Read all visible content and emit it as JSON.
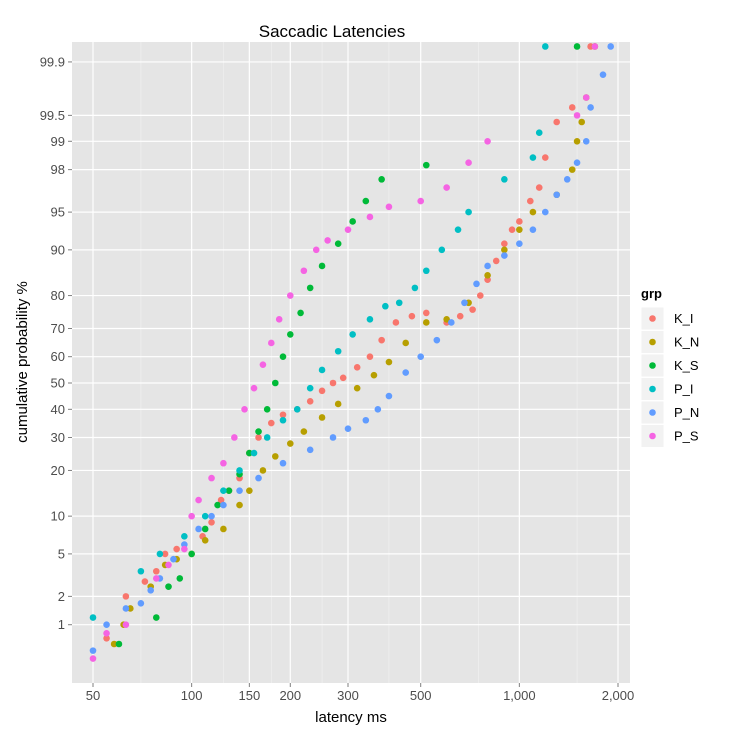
{
  "chart_data": {
    "type": "scatter",
    "title": "Saccadic Latencies",
    "xlabel": "latency ms",
    "ylabel": "cumulative probability %",
    "x_scale": "log10",
    "y_scale": "probit",
    "xlim": [
      45,
      2150
    ],
    "ylim": [
      0.2,
      99.95
    ],
    "x_ticks": [
      {
        "v": 50,
        "label": "50"
      },
      {
        "v": 100,
        "label": "100"
      },
      {
        "v": 150,
        "label": "150"
      },
      {
        "v": 200,
        "label": "200"
      },
      {
        "v": 300,
        "label": "300"
      },
      {
        "v": 500,
        "label": "500"
      },
      {
        "v": 1000,
        "label": "1,000"
      },
      {
        "v": 2000,
        "label": "2,000"
      }
    ],
    "y_ticks": [
      {
        "v": 1,
        "label": "1"
      },
      {
        "v": 2,
        "label": "2"
      },
      {
        "v": 5,
        "label": "5"
      },
      {
        "v": 10,
        "label": "10"
      },
      {
        "v": 20,
        "label": "20"
      },
      {
        "v": 30,
        "label": "30"
      },
      {
        "v": 40,
        "label": "40"
      },
      {
        "v": 50,
        "label": "50"
      },
      {
        "v": 60,
        "label": "60"
      },
      {
        "v": 70,
        "label": "70"
      },
      {
        "v": 80,
        "label": "80"
      },
      {
        "v": 90,
        "label": "90"
      },
      {
        "v": 95,
        "label": "95"
      },
      {
        "v": 98,
        "label": "98"
      },
      {
        "v": 99,
        "label": "99"
      },
      {
        "v": 99.5,
        "label": "99.5"
      },
      {
        "v": 99.9,
        "label": "99.9"
      }
    ],
    "grid": true,
    "legend": {
      "title": "grp",
      "placement": "right"
    },
    "series": [
      {
        "name": "K_I",
        "color": "#F8766D",
        "points": [
          [
            55,
            0.7
          ],
          [
            63,
            2
          ],
          [
            72,
            2.8
          ],
          [
            78,
            3.5
          ],
          [
            83,
            5
          ],
          [
            90,
            5.5
          ],
          [
            108,
            7
          ],
          [
            115,
            9
          ],
          [
            123,
            13
          ],
          [
            130,
            15
          ],
          [
            140,
            18
          ],
          [
            150,
            25
          ],
          [
            160,
            30
          ],
          [
            175,
            35
          ],
          [
            190,
            38
          ],
          [
            210,
            40
          ],
          [
            230,
            43
          ],
          [
            250,
            47
          ],
          [
            270,
            50
          ],
          [
            290,
            52
          ],
          [
            320,
            56
          ],
          [
            350,
            60
          ],
          [
            380,
            66
          ],
          [
            420,
            72
          ],
          [
            470,
            74
          ],
          [
            520,
            75
          ],
          [
            600,
            72
          ],
          [
            660,
            74
          ],
          [
            720,
            76
          ],
          [
            760,
            80
          ],
          [
            800,
            84
          ],
          [
            850,
            88
          ],
          [
            900,
            91
          ],
          [
            950,
            93
          ],
          [
            1000,
            94
          ],
          [
            1080,
            96
          ],
          [
            1150,
            97
          ],
          [
            1200,
            98.5
          ],
          [
            1300,
            99.4
          ],
          [
            1450,
            99.6
          ],
          [
            1650,
            99.94
          ]
        ]
      },
      {
        "name": "K_N",
        "color": "#B79F00",
        "points": [
          [
            58,
            0.6
          ],
          [
            62,
            1
          ],
          [
            65,
            1.5
          ],
          [
            75,
            2.5
          ],
          [
            83,
            4
          ],
          [
            90,
            4.5
          ],
          [
            100,
            5
          ],
          [
            110,
            6.5
          ],
          [
            125,
            8
          ],
          [
            140,
            12
          ],
          [
            150,
            15
          ],
          [
            165,
            20
          ],
          [
            180,
            24
          ],
          [
            200,
            28
          ],
          [
            220,
            32
          ],
          [
            250,
            37
          ],
          [
            280,
            42
          ],
          [
            320,
            48
          ],
          [
            360,
            53
          ],
          [
            400,
            58
          ],
          [
            450,
            65
          ],
          [
            520,
            72
          ],
          [
            600,
            73
          ],
          [
            700,
            78
          ],
          [
            800,
            85
          ],
          [
            900,
            90
          ],
          [
            1000,
            93
          ],
          [
            1100,
            95
          ],
          [
            1300,
            96.5
          ],
          [
            1450,
            98
          ],
          [
            1500,
            99
          ],
          [
            1550,
            99.4
          ],
          [
            1600,
            99.7
          ],
          [
            1700,
            99.94
          ]
        ]
      },
      {
        "name": "K_S",
        "color": "#00BA38",
        "points": [
          [
            60,
            0.6
          ],
          [
            78,
            1.2
          ],
          [
            85,
            2.5
          ],
          [
            92,
            3
          ],
          [
            100,
            5
          ],
          [
            110,
            8
          ],
          [
            120,
            12
          ],
          [
            130,
            15
          ],
          [
            140,
            19
          ],
          [
            150,
            25
          ],
          [
            160,
            32
          ],
          [
            170,
            40
          ],
          [
            180,
            50
          ],
          [
            190,
            60
          ],
          [
            200,
            68
          ],
          [
            215,
            75
          ],
          [
            230,
            82
          ],
          [
            250,
            87
          ],
          [
            280,
            91
          ],
          [
            310,
            94
          ],
          [
            340,
            96
          ],
          [
            380,
            97.5
          ],
          [
            520,
            98.2
          ],
          [
            1500,
            99.94
          ]
        ]
      },
      {
        "name": "P_I",
        "color": "#00BFC4",
        "points": [
          [
            50,
            1.2
          ],
          [
            70,
            3.5
          ],
          [
            80,
            5
          ],
          [
            95,
            7
          ],
          [
            110,
            10
          ],
          [
            125,
            15
          ],
          [
            140,
            20
          ],
          [
            155,
            25
          ],
          [
            170,
            30
          ],
          [
            190,
            36
          ],
          [
            210,
            40
          ],
          [
            230,
            48
          ],
          [
            250,
            55
          ],
          [
            280,
            62
          ],
          [
            310,
            68
          ],
          [
            350,
            73
          ],
          [
            390,
            77
          ],
          [
            430,
            78
          ],
          [
            480,
            82
          ],
          [
            520,
            86
          ],
          [
            580,
            90
          ],
          [
            650,
            93
          ],
          [
            700,
            95
          ],
          [
            900,
            97.5
          ],
          [
            1100,
            98.5
          ],
          [
            1150,
            99.2
          ],
          [
            1200,
            99.94
          ]
        ]
      },
      {
        "name": "P_N",
        "color": "#619CFF",
        "points": [
          [
            50,
            0.5
          ],
          [
            55,
            1
          ],
          [
            63,
            1.5
          ],
          [
            70,
            1.7
          ],
          [
            75,
            2.3
          ],
          [
            80,
            3
          ],
          [
            88,
            4.5
          ],
          [
            95,
            6
          ],
          [
            105,
            8
          ],
          [
            115,
            10
          ],
          [
            125,
            12
          ],
          [
            140,
            15
          ],
          [
            160,
            18
          ],
          [
            190,
            22
          ],
          [
            230,
            26
          ],
          [
            270,
            30
          ],
          [
            300,
            33
          ],
          [
            340,
            36
          ],
          [
            370,
            40
          ],
          [
            400,
            45
          ],
          [
            450,
            54
          ],
          [
            500,
            60
          ],
          [
            560,
            66
          ],
          [
            620,
            72
          ],
          [
            680,
            78
          ],
          [
            740,
            83
          ],
          [
            800,
            87
          ],
          [
            900,
            89
          ],
          [
            1000,
            91
          ],
          [
            1100,
            93
          ],
          [
            1200,
            95
          ],
          [
            1300,
            96.5
          ],
          [
            1400,
            97.5
          ],
          [
            1500,
            98.3
          ],
          [
            1600,
            99
          ],
          [
            1650,
            99.6
          ],
          [
            1800,
            99.85
          ],
          [
            1900,
            99.94
          ]
        ]
      },
      {
        "name": "P_S",
        "color": "#F564E3",
        "points": [
          [
            50,
            0.4
          ],
          [
            55,
            0.8
          ],
          [
            63,
            1
          ],
          [
            78,
            3
          ],
          [
            85,
            4
          ],
          [
            95,
            5.5
          ],
          [
            100,
            10
          ],
          [
            105,
            13
          ],
          [
            115,
            18
          ],
          [
            125,
            22
          ],
          [
            135,
            30
          ],
          [
            145,
            40
          ],
          [
            155,
            48
          ],
          [
            165,
            57
          ],
          [
            175,
            65
          ],
          [
            185,
            73
          ],
          [
            200,
            80
          ],
          [
            220,
            86
          ],
          [
            240,
            90
          ],
          [
            260,
            91.5
          ],
          [
            300,
            93
          ],
          [
            350,
            94.5
          ],
          [
            400,
            95.5
          ],
          [
            500,
            96
          ],
          [
            600,
            97
          ],
          [
            700,
            98.3
          ],
          [
            800,
            99
          ],
          [
            1500,
            99.5
          ],
          [
            1600,
            99.7
          ],
          [
            1700,
            99.94
          ]
        ]
      }
    ]
  }
}
